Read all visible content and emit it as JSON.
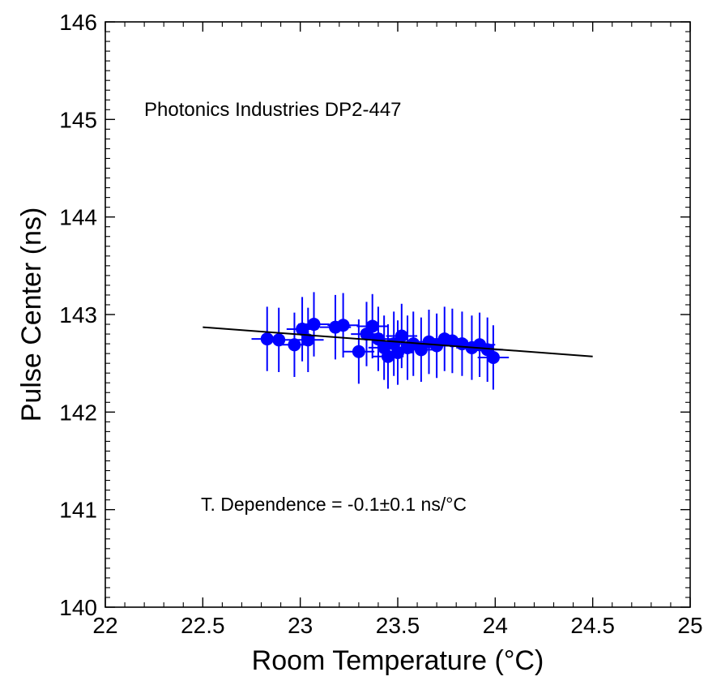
{
  "chart_data": {
    "type": "scatter",
    "title": "",
    "xlabel": "Room Temperature (°C)",
    "ylabel": "Pulse Center (ns)",
    "xlim": [
      22,
      25
    ],
    "ylim": [
      140,
      146
    ],
    "xticks": [
      "22",
      "22.5",
      "23",
      "23.5",
      "24",
      "24.5",
      "25"
    ],
    "yticks": [
      "140",
      "141",
      "142",
      "143",
      "144",
      "145",
      "146"
    ],
    "grid": false,
    "annotations": {
      "device": "Photonics Industries DP2-447",
      "dependence": "T. Dependence = -0.1±0.1 ns/°C"
    },
    "colors": {
      "points": "#0000ff",
      "fit": "#000000"
    },
    "fit_line": {
      "x": [
        22.5,
        24.5
      ],
      "y": [
        142.87,
        142.57
      ]
    },
    "series": [
      {
        "points": [
          {
            "x": 22.83,
            "y": 142.75,
            "xerr": 0.08,
            "yerr": 0.33
          },
          {
            "x": 22.89,
            "y": 142.74,
            "xerr": 0.08,
            "yerr": 0.33
          },
          {
            "x": 22.97,
            "y": 142.69,
            "xerr": 0.08,
            "yerr": 0.33
          },
          {
            "x": 23.01,
            "y": 142.85,
            "xerr": 0.08,
            "yerr": 0.33
          },
          {
            "x": 23.04,
            "y": 142.74,
            "xerr": 0.08,
            "yerr": 0.33
          },
          {
            "x": 23.07,
            "y": 142.9,
            "xerr": 0.08,
            "yerr": 0.33
          },
          {
            "x": 23.18,
            "y": 142.87,
            "xerr": 0.08,
            "yerr": 0.33
          },
          {
            "x": 23.22,
            "y": 142.89,
            "xerr": 0.08,
            "yerr": 0.33
          },
          {
            "x": 23.3,
            "y": 142.62,
            "xerr": 0.08,
            "yerr": 0.33
          },
          {
            "x": 23.34,
            "y": 142.8,
            "xerr": 0.08,
            "yerr": 0.33
          },
          {
            "x": 23.37,
            "y": 142.88,
            "xerr": 0.08,
            "yerr": 0.33
          },
          {
            "x": 23.4,
            "y": 142.75,
            "xerr": 0.08,
            "yerr": 0.33
          },
          {
            "x": 23.43,
            "y": 142.66,
            "xerr": 0.08,
            "yerr": 0.33
          },
          {
            "x": 23.45,
            "y": 142.57,
            "xerr": 0.08,
            "yerr": 0.33
          },
          {
            "x": 23.48,
            "y": 142.7,
            "xerr": 0.08,
            "yerr": 0.33
          },
          {
            "x": 23.5,
            "y": 142.61,
            "xerr": 0.08,
            "yerr": 0.33
          },
          {
            "x": 23.52,
            "y": 142.78,
            "xerr": 0.08,
            "yerr": 0.33
          },
          {
            "x": 23.55,
            "y": 142.66,
            "xerr": 0.08,
            "yerr": 0.33
          },
          {
            "x": 23.58,
            "y": 142.7,
            "xerr": 0.08,
            "yerr": 0.33
          },
          {
            "x": 23.62,
            "y": 142.64,
            "xerr": 0.08,
            "yerr": 0.33
          },
          {
            "x": 23.66,
            "y": 142.72,
            "xerr": 0.08,
            "yerr": 0.33
          },
          {
            "x": 23.7,
            "y": 142.68,
            "xerr": 0.08,
            "yerr": 0.33
          },
          {
            "x": 23.74,
            "y": 142.75,
            "xerr": 0.08,
            "yerr": 0.33
          },
          {
            "x": 23.78,
            "y": 142.73,
            "xerr": 0.08,
            "yerr": 0.33
          },
          {
            "x": 23.83,
            "y": 142.7,
            "xerr": 0.08,
            "yerr": 0.33
          },
          {
            "x": 23.88,
            "y": 142.66,
            "xerr": 0.08,
            "yerr": 0.33
          },
          {
            "x": 23.92,
            "y": 142.69,
            "xerr": 0.08,
            "yerr": 0.33
          },
          {
            "x": 23.96,
            "y": 142.64,
            "xerr": 0.08,
            "yerr": 0.33
          },
          {
            "x": 23.99,
            "y": 142.56,
            "xerr": 0.08,
            "yerr": 0.33
          }
        ]
      }
    ]
  }
}
